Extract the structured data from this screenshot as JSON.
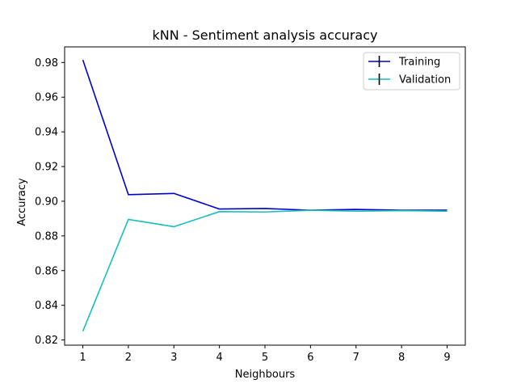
{
  "chart_data": {
    "type": "line",
    "title": "kNN - Sentiment analysis accuracy",
    "xlabel": "Neighbours",
    "ylabel": "Accuracy",
    "x": [
      1,
      2,
      3,
      4,
      5,
      6,
      7,
      8,
      9
    ],
    "xlim": [
      0.6,
      9.4
    ],
    "ylim": [
      0.817,
      0.989
    ],
    "xticks": [
      1,
      2,
      3,
      4,
      5,
      6,
      7,
      8,
      9
    ],
    "yticks": [
      0.82,
      0.84,
      0.86,
      0.88,
      0.9,
      0.92,
      0.94,
      0.96,
      0.98
    ],
    "ytick_labels": [
      "0.82",
      "0.84",
      "0.86",
      "0.88",
      "0.90",
      "0.92",
      "0.94",
      "0.96",
      "0.98"
    ],
    "grid": false,
    "legend_position": "top-right",
    "series": [
      {
        "name": "Training",
        "color": "#0000cc",
        "values": [
          0.9815,
          0.9038,
          0.9045,
          0.8955,
          0.8958,
          0.8948,
          0.8953,
          0.8948,
          0.8948
        ]
      },
      {
        "name": "Validation",
        "color": "#17bebe",
        "values": [
          0.825,
          0.8895,
          0.8853,
          0.894,
          0.8938,
          0.8948,
          0.8943,
          0.8946,
          0.8943
        ]
      }
    ]
  }
}
